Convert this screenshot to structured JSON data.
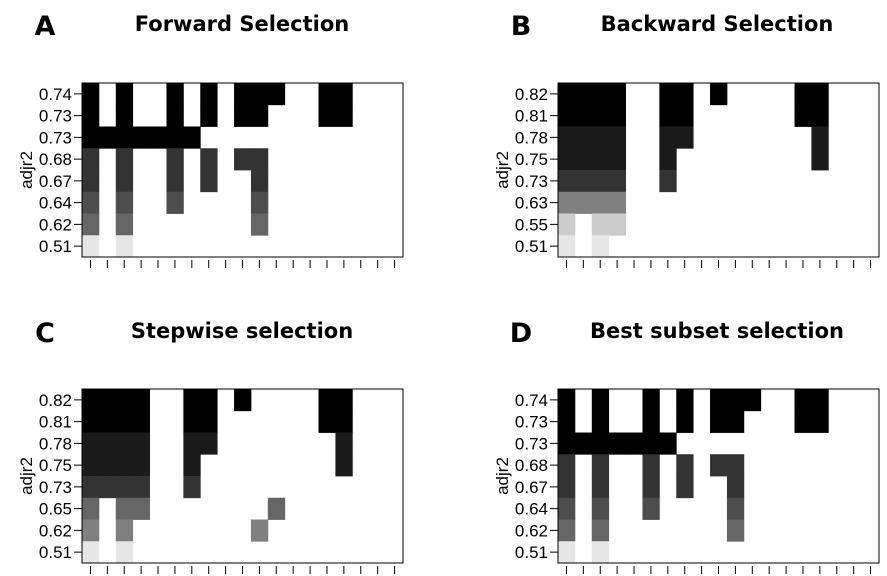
{
  "chart_data": [
    {
      "type": "heatmap",
      "panel_letter": "A",
      "title": "Forward Selection",
      "ylabel": "adjr2",
      "n_columns": 19,
      "rows": [
        {
          "label": "0.74",
          "color": "#000000",
          "selected": [
            0,
            2,
            5,
            7,
            9,
            10,
            11,
            14,
            15
          ]
        },
        {
          "label": "0.73",
          "color": "#000000",
          "selected": [
            0,
            2,
            5,
            7,
            9,
            10,
            14,
            15
          ]
        },
        {
          "label": "0.73",
          "color": "#000000",
          "selected": [
            0,
            1,
            2,
            3,
            4,
            5,
            6
          ]
        },
        {
          "label": "0.68",
          "color": "#333333",
          "selected": [
            0,
            2,
            5,
            7,
            9,
            10
          ]
        },
        {
          "label": "0.67",
          "color": "#333333",
          "selected": [
            0,
            2,
            5,
            7,
            10
          ]
        },
        {
          "label": "0.64",
          "color": "#4d4d4d",
          "selected": [
            0,
            2,
            5,
            10
          ]
        },
        {
          "label": "0.62",
          "color": "#666666",
          "selected": [
            0,
            2,
            10
          ]
        },
        {
          "label": "0.51",
          "color": "#e6e6e6",
          "selected": [
            0,
            2
          ]
        }
      ]
    },
    {
      "type": "heatmap",
      "panel_letter": "B",
      "title": "Backward Selection",
      "ylabel": "adjr2",
      "n_columns": 19,
      "rows": [
        {
          "label": "0.82",
          "color": "#000000",
          "selected": [
            0,
            1,
            2,
            3,
            6,
            7,
            9,
            14,
            15
          ]
        },
        {
          "label": "0.81",
          "color": "#000000",
          "selected": [
            0,
            1,
            2,
            3,
            6,
            7,
            14,
            15
          ]
        },
        {
          "label": "0.78",
          "color": "#1a1a1a",
          "selected": [
            0,
            1,
            2,
            3,
            6,
            7,
            15
          ]
        },
        {
          "label": "0.75",
          "color": "#1a1a1a",
          "selected": [
            0,
            1,
            2,
            3,
            6,
            15
          ]
        },
        {
          "label": "0.73",
          "color": "#333333",
          "selected": [
            0,
            1,
            2,
            3,
            6
          ]
        },
        {
          "label": "0.63",
          "color": "#808080",
          "selected": [
            0,
            1,
            2,
            3
          ]
        },
        {
          "label": "0.55",
          "color": "#cccccc",
          "selected": [
            0,
            2,
            3
          ]
        },
        {
          "label": "0.51",
          "color": "#e6e6e6",
          "selected": [
            0,
            2
          ]
        }
      ]
    },
    {
      "type": "heatmap",
      "panel_letter": "C",
      "title": "Stepwise selection",
      "ylabel": "adjr2",
      "n_columns": 19,
      "rows": [
        {
          "label": "0.82",
          "color": "#000000",
          "selected": [
            0,
            1,
            2,
            3,
            6,
            7,
            9,
            14,
            15
          ]
        },
        {
          "label": "0.81",
          "color": "#000000",
          "selected": [
            0,
            1,
            2,
            3,
            6,
            7,
            14,
            15
          ]
        },
        {
          "label": "0.78",
          "color": "#1a1a1a",
          "selected": [
            0,
            1,
            2,
            3,
            6,
            7,
            15
          ]
        },
        {
          "label": "0.75",
          "color": "#1a1a1a",
          "selected": [
            0,
            1,
            2,
            3,
            6,
            15
          ]
        },
        {
          "label": "0.73",
          "color": "#333333",
          "selected": [
            0,
            1,
            2,
            3,
            6
          ]
        },
        {
          "label": "0.65",
          "color": "#666666",
          "selected": [
            0,
            2,
            3,
            11
          ]
        },
        {
          "label": "0.62",
          "color": "#808080",
          "selected": [
            0,
            2,
            10
          ]
        },
        {
          "label": "0.51",
          "color": "#e6e6e6",
          "selected": [
            0,
            2
          ]
        }
      ]
    },
    {
      "type": "heatmap",
      "panel_letter": "D",
      "title": "Best subset selection",
      "ylabel": "adjr2",
      "n_columns": 19,
      "rows": [
        {
          "label": "0.74",
          "color": "#000000",
          "selected": [
            0,
            2,
            5,
            7,
            9,
            10,
            11,
            14,
            15
          ]
        },
        {
          "label": "0.73",
          "color": "#000000",
          "selected": [
            0,
            2,
            5,
            7,
            9,
            10,
            14,
            15
          ]
        },
        {
          "label": "0.73",
          "color": "#000000",
          "selected": [
            0,
            1,
            2,
            3,
            4,
            5,
            6
          ]
        },
        {
          "label": "0.68",
          "color": "#333333",
          "selected": [
            0,
            2,
            5,
            7,
            9,
            10
          ]
        },
        {
          "label": "0.67",
          "color": "#333333",
          "selected": [
            0,
            2,
            5,
            7,
            10
          ]
        },
        {
          "label": "0.64",
          "color": "#4d4d4d",
          "selected": [
            0,
            2,
            5,
            10
          ]
        },
        {
          "label": "0.62",
          "color": "#666666",
          "selected": [
            0,
            2,
            10
          ]
        },
        {
          "label": "0.51",
          "color": "#e6e6e6",
          "selected": [
            0,
            2
          ]
        }
      ]
    }
  ]
}
